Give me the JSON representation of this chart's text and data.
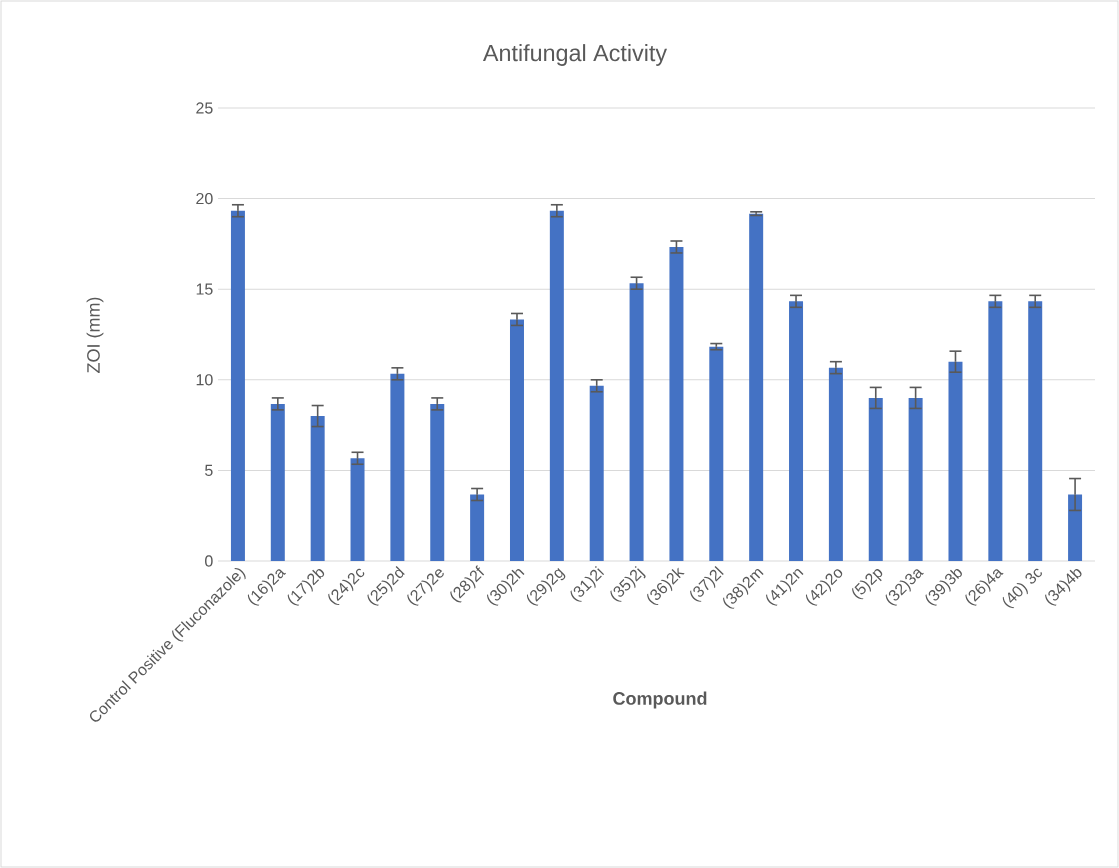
{
  "chart_data": {
    "type": "bar",
    "title": "Antifungal Activity",
    "xlabel": "Compound",
    "ylabel": "ZOI (mm)",
    "categories": [
      "Control Positive (Fluconazole)",
      "(16)2a",
      "(17)2b",
      "(24)2c",
      "(25)2d",
      "(27)2e",
      "(28)2f",
      "(30)2h",
      "(29)2g",
      "(31)2i",
      "(35)2j",
      "(36)2k",
      "(37)2l",
      "(38)2m",
      "(41)2n",
      "(42)2o",
      "(5)2p",
      "(32)3a",
      "(39)3b",
      "(26)4a",
      "(40) 3c",
      "(34)4b"
    ],
    "values": [
      19.33,
      8.67,
      8,
      5.67,
      10.33,
      8.67,
      3.67,
      13.33,
      19.33,
      9.67,
      15.33,
      17.33,
      11.83,
      19.17,
      14.33,
      10.67,
      9,
      9,
      11,
      14.33,
      14.33,
      3.67
    ],
    "errors": [
      0.33,
      0.33,
      0.58,
      0.33,
      0.33,
      0.33,
      0.33,
      0.33,
      0.33,
      0.33,
      0.33,
      0.33,
      0.17,
      0.1,
      0.33,
      0.33,
      0.58,
      0.58,
      0.58,
      0.33,
      0.33,
      0.88
    ],
    "color": "#4472c4",
    "ylim": [
      0,
      25
    ],
    "yticks": [
      0,
      5,
      10,
      15,
      20,
      25
    ],
    "grid": "y"
  }
}
